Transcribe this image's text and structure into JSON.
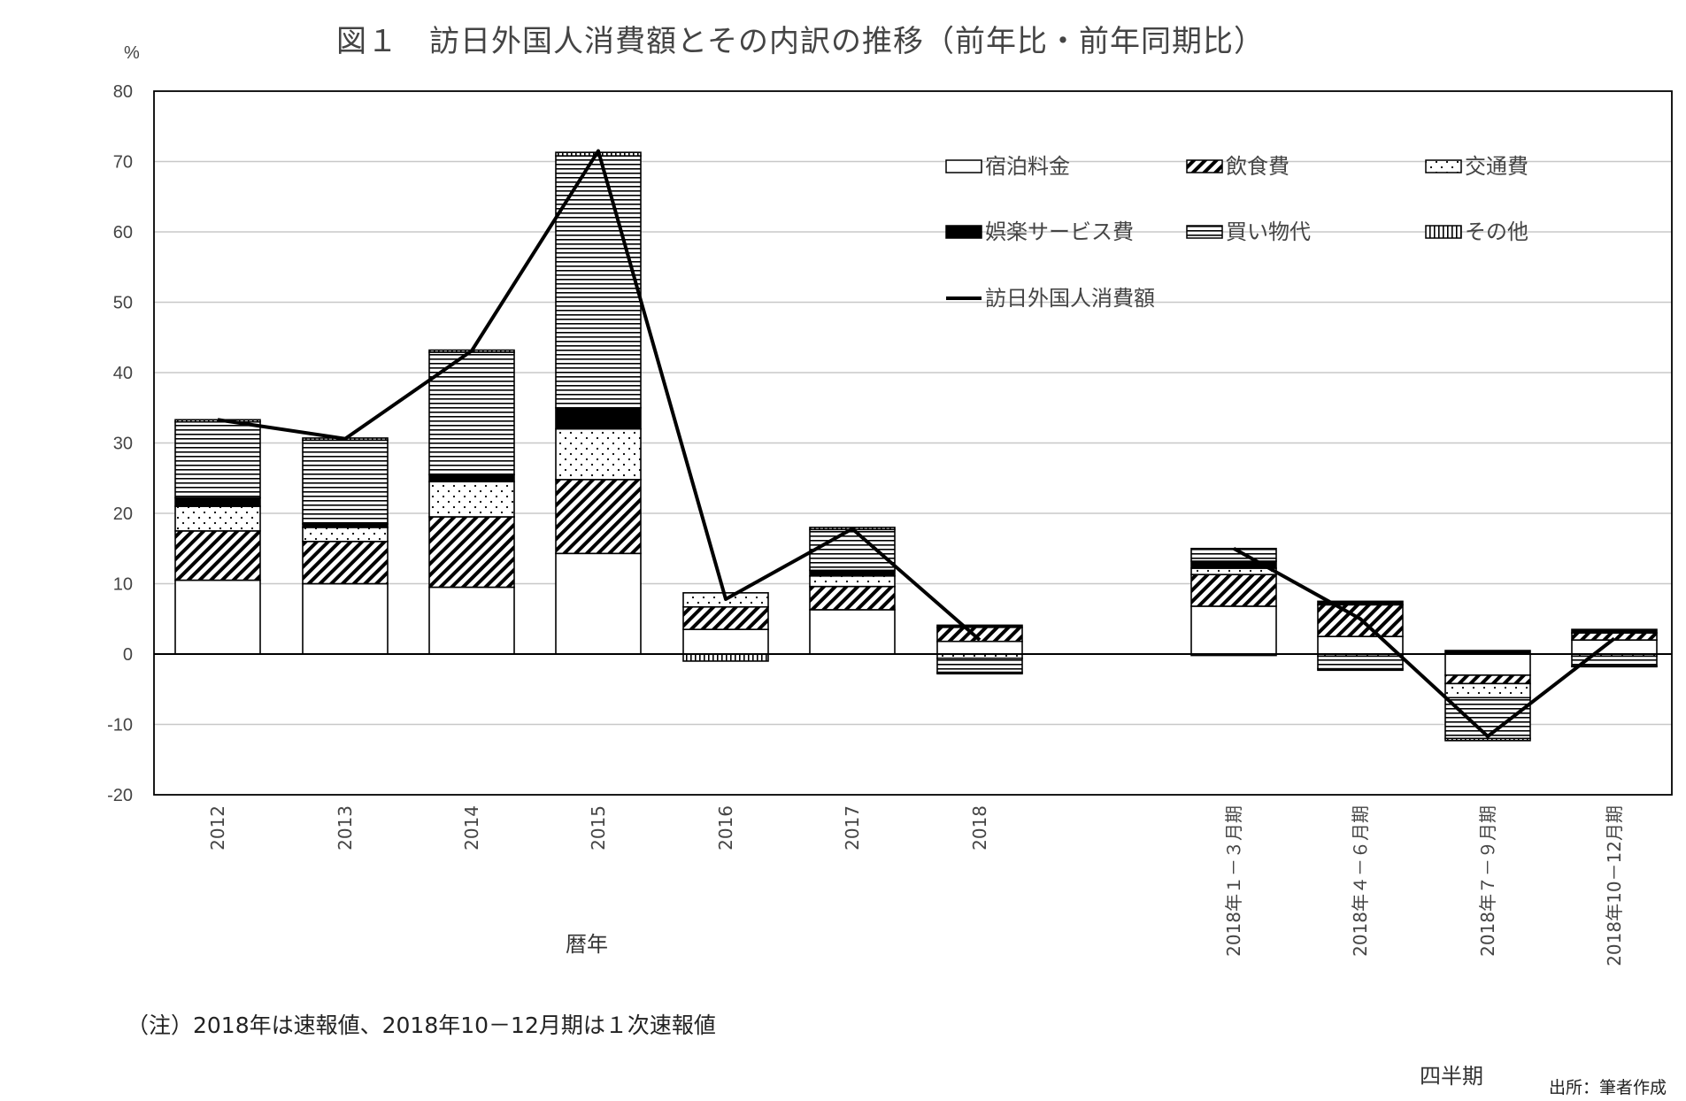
{
  "chart_data": {
    "type": "bar",
    "title": "図１　訪日外国人消費額とその内訳の推移（前年比・前年同期比）",
    "unit": "%",
    "ylim": [
      -20,
      80
    ],
    "yticks": [
      80,
      70,
      60,
      50,
      40,
      30,
      20,
      10,
      0,
      -10,
      -20
    ],
    "categories": [
      "2012",
      "2013",
      "2014",
      "2015",
      "2016",
      "2017",
      "2018",
      "2018年１－３月期",
      "2018年４－６月期",
      "2018年７－９月期",
      "2018年10－12月期"
    ],
    "group_labels": {
      "annual": "暦年",
      "quarterly": "四半期"
    },
    "series": [
      {
        "name": "宿泊料金",
        "kind": "bar",
        "pattern": "white",
        "values": [
          10.5,
          10.0,
          9.5,
          14.3,
          3.5,
          6.3,
          1.8,
          6.8,
          2.5,
          -3.0,
          2.0
        ]
      },
      {
        "name": "飲食費",
        "kind": "bar",
        "pattern": "diagonal",
        "values": [
          7.0,
          6.0,
          10.0,
          10.5,
          3.2,
          3.3,
          2.0,
          4.5,
          4.5,
          -1.2,
          1.0
        ]
      },
      {
        "name": "交通費",
        "kind": "bar",
        "pattern": "dots",
        "values": [
          3.5,
          2.0,
          5.0,
          7.2,
          2.0,
          1.5,
          -0.6,
          0.9,
          -0.3,
          -2.0,
          -0.3
        ]
      },
      {
        "name": "娯楽サービス費",
        "kind": "bar",
        "pattern": "solid-black",
        "values": [
          1.2,
          0.5,
          1.0,
          3.0,
          0.0,
          0.8,
          0.3,
          1.0,
          0.5,
          0.5,
          0.5
        ]
      },
      {
        "name": "買い物代",
        "kind": "bar",
        "pattern": "horizontal",
        "values": [
          10.8,
          11.9,
          17.4,
          35.8,
          0.0,
          5.8,
          -2.0,
          1.8,
          -1.8,
          -5.8,
          -1.4
        ]
      },
      {
        "name": "その他",
        "kind": "bar",
        "pattern": "vertical",
        "values": [
          0.3,
          0.3,
          0.3,
          0.5,
          -1.0,
          0.3,
          -0.2,
          -0.2,
          -0.2,
          -0.3,
          -0.1
        ]
      },
      {
        "name": "訪日外国人消費額",
        "kind": "line",
        "values": [
          33.3,
          30.6,
          43.1,
          71.5,
          7.8,
          17.8,
          2.0,
          15.0,
          5.0,
          -11.7,
          2.2
        ]
      }
    ],
    "grid": true,
    "legend_position": "top-right inside plot",
    "note": "（注）2018年は速報値、2018年10－12月期は１次速報値",
    "source": "出所：筆者作成"
  }
}
